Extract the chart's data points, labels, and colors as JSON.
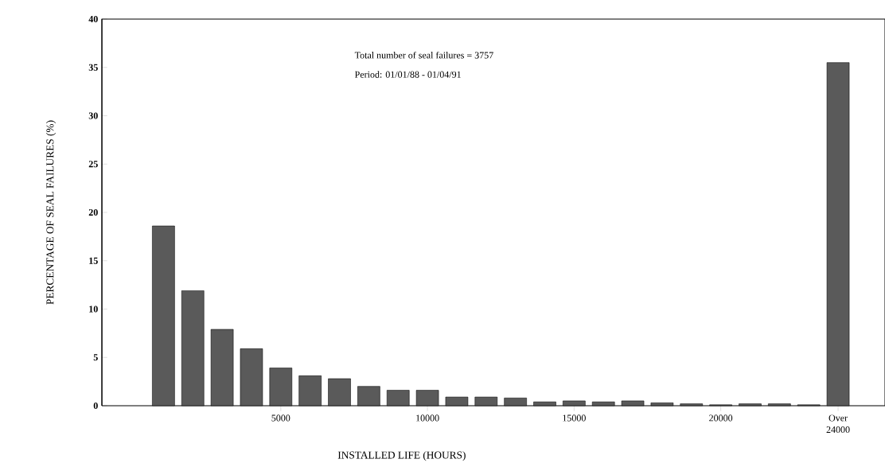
{
  "chart_data": {
    "type": "bar",
    "xlabel": "INSTALLED LIFE (HOURS)",
    "ylabel": "PERCENTAGE OF SEAL FAILURES (%)",
    "annotations": [
      "Total number of seal failures = 3757",
      "Period: 01/01/88 - 01/04/91"
    ],
    "x": [
      1000,
      2000,
      3000,
      4000,
      5000,
      6000,
      7000,
      8000,
      9000,
      10000,
      11000,
      12000,
      13000,
      14000,
      15000,
      16000,
      17000,
      18000,
      19000,
      20000,
      21000,
      22000,
      23000,
      24000
    ],
    "values": [
      18.6,
      11.9,
      7.9,
      5.9,
      3.9,
      3.1,
      2.8,
      2.0,
      1.6,
      1.6,
      0.9,
      0.9,
      0.8,
      0.4,
      0.5,
      0.4,
      0.5,
      0.3,
      0.2,
      0.1,
      0.2,
      0.2,
      0.1,
      35.5
    ],
    "color": "#5a5a5a",
    "xlim": [
      -1100,
      25600
    ],
    "ylim": [
      0,
      40
    ],
    "xticks": [
      5000,
      10000,
      15000,
      20000,
      {
        "value": 24000,
        "label": "Over 24000"
      }
    ],
    "yticks": [
      0,
      5,
      10,
      15,
      20,
      25,
      30,
      35,
      40
    ]
  }
}
